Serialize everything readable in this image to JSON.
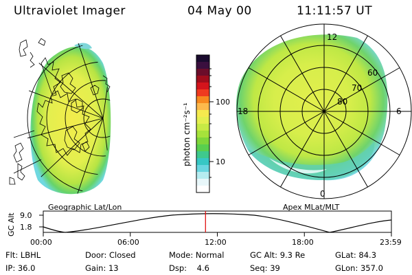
{
  "header": {
    "instrument": "Ultraviolet Imager",
    "date": "04 May 00",
    "time": "11:11:57 UT"
  },
  "colorbar": {
    "unit_label": "photon cm⁻²s⁻¹",
    "tick_100": "100",
    "tick_10": "10",
    "colors": [
      "#1a0b2e",
      "#3a0f3e",
      "#6b0d2a",
      "#a00d1c",
      "#d4141c",
      "#ef3a1f",
      "#f7891f",
      "#fdb94c",
      "#f5ea4e",
      "#e4ef4f",
      "#c7ea45",
      "#a6e23b",
      "#7fd63a",
      "#59cf4e",
      "#3fc98d",
      "#37c7c4",
      "#6ad6e0",
      "#b6ecf0",
      "#e8f7fa",
      "#ffffff"
    ]
  },
  "left_panel": {
    "caption": "Geographic Lat/Lon"
  },
  "right_panel": {
    "caption": "Apex MLat/MLT",
    "mlt_labels": {
      "top": "12",
      "left": "18",
      "right": "6",
      "bottom": "0"
    },
    "lat_labels": [
      "60",
      "70",
      "80"
    ]
  },
  "timeline": {
    "axis_label": "GC Alt",
    "y_ticks": [
      "9.0",
      "1.8"
    ],
    "x_ticks": [
      "00:00",
      "06:00",
      "12:00",
      "18:00",
      "23:59"
    ],
    "marker_time_fraction": 0.466
  },
  "status": {
    "flt_label": "Flt:",
    "flt_value": "LBHL",
    "ip_label": "IP:",
    "ip_value": "36.0",
    "door_label": "Door:",
    "door_value": "Closed",
    "gain_label": "Gain:",
    "gain_value": "13",
    "mode_label": "Mode:",
    "mode_value": "Normal",
    "dsp_label": "Dsp:",
    "dsp_value": "4.6",
    "gcalt_label": "GC Alt:",
    "gcalt_value": "9.3 Re",
    "seq_label": "Seq:",
    "seq_value": "39",
    "glat_label": "GLat:",
    "glat_value": "84.3",
    "glon_label": "GLon:",
    "glon_value": "357.0"
  }
}
